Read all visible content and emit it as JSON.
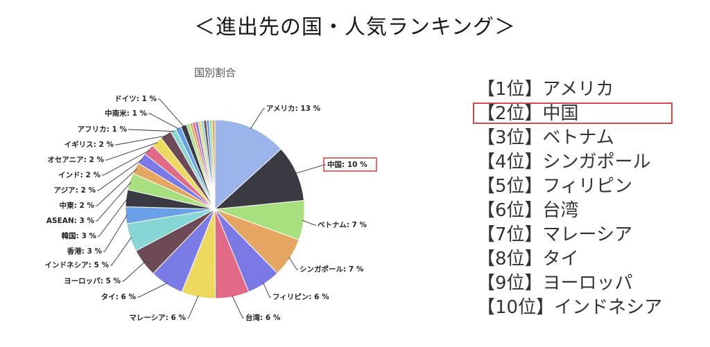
{
  "page": {
    "title": "＜進出先の国・人気ランキング＞"
  },
  "chart_data": {
    "type": "pie",
    "title": "国別割合",
    "categories": [
      "アメリカ",
      "中国",
      "ベトナム",
      "シンガポール",
      "フィリピン",
      "台湾",
      "マレーシア",
      "タイ",
      "ヨーロッパ",
      "インドネシア",
      "香港",
      "韓国",
      "ASEAN",
      "中東",
      "アジア",
      "インド",
      "オセアニア",
      "イギリス",
      "アフリカ",
      "中南米",
      "ドイツ"
    ],
    "values": [
      13,
      10,
      7,
      7,
      6,
      6,
      6,
      6,
      5,
      5,
      3,
      3,
      3,
      2,
      2,
      2,
      2,
      2,
      1,
      1,
      1
    ],
    "labels": [
      "アメリカ: 13 %",
      "中国: 10 %",
      "ベトナム: 7 %",
      "シンガポール: 7 %",
      "フィリピン: 6 %",
      "台湾: 6 %",
      "マレーシア: 6 %",
      "タイ: 6 %",
      "ヨーロッパ: 5 %",
      "インドネシア: 5 %",
      "香港: 3 %",
      "韓国: 3 %",
      "ASEAN: 3 %",
      "中東: 2 %",
      "アジア: 2 %",
      "インド: 2 %",
      "オセアニア: 2 %",
      "イギリス: 2 %",
      "アフリカ: 1 %",
      "中南米: 1 %",
      "ドイツ: 1 %"
    ],
    "colors": [
      "#9bb4ea",
      "#3a3a42",
      "#a9e07f",
      "#e4a661",
      "#7b79e6",
      "#e16a86",
      "#ecd95d",
      "#7b7be6",
      "#6d4a55",
      "#87d6d6",
      "#6aa0e8",
      "#3a3a42",
      "#a9e07f",
      "#e4a661",
      "#7b79e6",
      "#e16a86",
      "#ecd95d",
      "#6d4a55",
      "#87d6d6",
      "#6aa0e8",
      "#3a3a42",
      "#a9e07f",
      "#e4a661",
      "#e16a86",
      "#7b79e6",
      "#ecd95d",
      "#87d6d6",
      "#6d4a55",
      "#6aa0e8",
      "#a9e07f",
      "#e4a661",
      "#cfe3f7"
    ],
    "minor_slice_values": [
      0.6,
      0.5,
      0.5,
      0.5,
      0.5,
      0.5,
      0.5,
      0.5,
      0.5,
      0.5
    ],
    "highlighted_label": "中国: 10 %",
    "highlight_color": "#d24b4b"
  },
  "ranking": [
    "【1位】アメリカ",
    "【2位】中国",
    "【3位】ベトナム",
    "【4位】シンガポール",
    "【5位】フィリピン",
    "【6位】台湾",
    "【7位】マレーシア",
    "【8位】タイ",
    "【9位】ヨーロッパ",
    "【10位】インドネシア"
  ],
  "ranking_highlight_index": 1
}
